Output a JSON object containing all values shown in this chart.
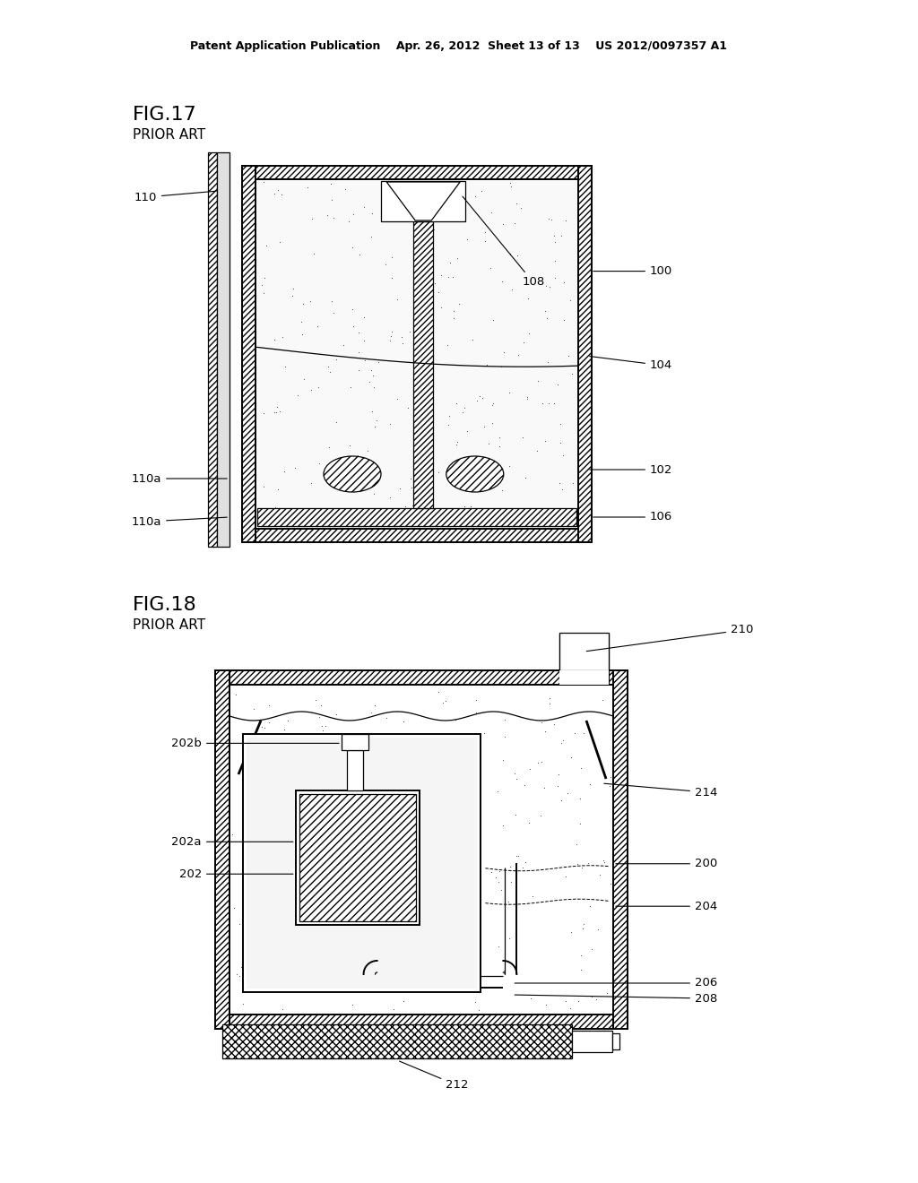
{
  "page_width": 10.24,
  "page_height": 13.2,
  "bg_color": "#ffffff",
  "header": "Patent Application Publication    Apr. 26, 2012  Sheet 13 of 13    US 2012/0097357 A1",
  "fig17_title": "FIG.17",
  "fig17_sub": "PRIOR ART",
  "fig18_title": "FIG.18",
  "fig18_sub": "PRIOR ART",
  "lw_thin": 0.9,
  "lw_med": 1.4,
  "lw_thick": 2.0
}
